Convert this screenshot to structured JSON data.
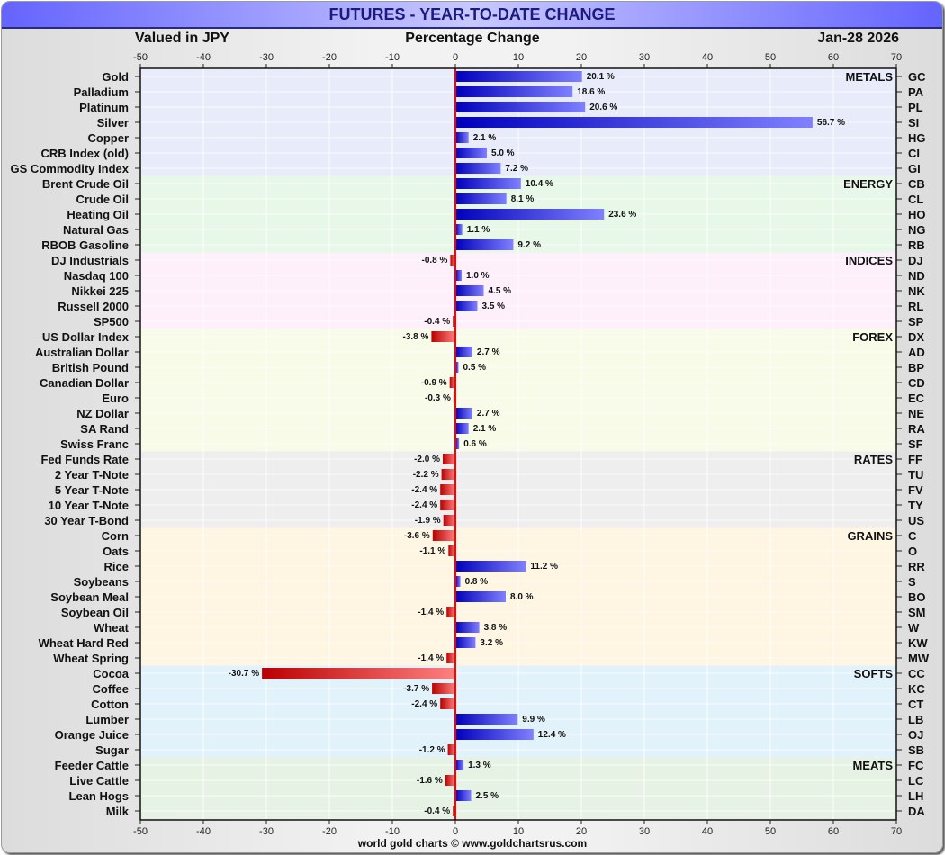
{
  "header": {
    "title": "FUTURES - YEAR-TO-DATE CHANGE",
    "left_note": "Valued in JPY",
    "center_note": "Percentage Change",
    "date": "Jan-28  2026"
  },
  "footer": "world gold charts © www.goldchartsrus.com",
  "colors": {
    "positive_dark": "#0000bb",
    "positive_light": "#8080ff",
    "negative_dark": "#bb0000",
    "negative_light": "#ff8080",
    "zero_line": "#ff0000"
  },
  "chart_data": {
    "type": "bar",
    "orientation": "horizontal",
    "title": "FUTURES - YEAR-TO-DATE CHANGE",
    "xlabel": "Percentage Change",
    "xlim": [
      -50,
      70
    ],
    "xticks": [
      -50,
      -40,
      -30,
      -20,
      -10,
      0,
      10,
      20,
      30,
      40,
      50,
      60,
      70
    ],
    "grid": true,
    "value_suffix": " %",
    "sections": [
      {
        "name": "METALS",
        "color": "#e8ecfa",
        "items": [
          {
            "label": "Gold",
            "code": "GC",
            "value": 20.1
          },
          {
            "label": "Palladium",
            "code": "PA",
            "value": 18.6
          },
          {
            "label": "Platinum",
            "code": "PL",
            "value": 20.6
          },
          {
            "label": "Silver",
            "code": "SI",
            "value": 56.7
          },
          {
            "label": "Copper",
            "code": "HG",
            "value": 2.1
          },
          {
            "label": "CRB Index (old)",
            "code": "CI",
            "value": 5.0
          },
          {
            "label": "GS Commodity Index",
            "code": "GI",
            "value": 7.2
          }
        ]
      },
      {
        "name": "ENERGY",
        "color": "#e8f8e8",
        "items": [
          {
            "label": "Brent Crude Oil",
            "code": "CB",
            "value": 10.4
          },
          {
            "label": "Crude Oil",
            "code": "CL",
            "value": 8.1
          },
          {
            "label": "Heating Oil",
            "code": "HO",
            "value": 23.6
          },
          {
            "label": "Natural Gas",
            "code": "NG",
            "value": 1.1
          },
          {
            "label": "RBOB Gasoline",
            "code": "RB",
            "value": 9.2
          }
        ]
      },
      {
        "name": "INDICES",
        "color": "#fdf0fa",
        "items": [
          {
            "label": "DJ Industrials",
            "code": "DJ",
            "value": -0.8
          },
          {
            "label": "Nasdaq 100",
            "code": "ND",
            "value": 1.0
          },
          {
            "label": "Nikkei 225",
            "code": "NK",
            "value": 4.5
          },
          {
            "label": "Russell 2000",
            "code": "RL",
            "value": 3.5
          },
          {
            "label": "SP500",
            "code": "SP",
            "value": -0.4
          }
        ]
      },
      {
        "name": "FOREX",
        "color": "#f8fbe8",
        "items": [
          {
            "label": "US Dollar Index",
            "code": "DX",
            "value": -3.8
          },
          {
            "label": "Australian Dollar",
            "code": "AD",
            "value": 2.7
          },
          {
            "label": "British Pound",
            "code": "BP",
            "value": 0.5
          },
          {
            "label": "Canadian Dollar",
            "code": "CD",
            "value": -0.9
          },
          {
            "label": "Euro",
            "code": "EC",
            "value": -0.3
          },
          {
            "label": "NZ Dollar",
            "code": "NE",
            "value": 2.7
          },
          {
            "label": "SA Rand",
            "code": "RA",
            "value": 2.1
          },
          {
            "label": "Swiss Franc",
            "code": "SF",
            "value": 0.6
          }
        ]
      },
      {
        "name": "RATES",
        "color": "#eeeeee",
        "items": [
          {
            "label": "Fed Funds Rate",
            "code": "FF",
            "value": -2.0
          },
          {
            "label": "2 Year T-Note",
            "code": "TU",
            "value": -2.2
          },
          {
            "label": "5 Year T-Note",
            "code": "FV",
            "value": -2.4
          },
          {
            "label": "10 Year T-Note",
            "code": "TY",
            "value": -2.4
          },
          {
            "label": "30 Year T-Bond",
            "code": "US",
            "value": -1.9
          }
        ]
      },
      {
        "name": "GRAINS",
        "color": "#fef6e2",
        "items": [
          {
            "label": "Corn",
            "code": "C",
            "value": -3.6
          },
          {
            "label": "Oats",
            "code": "O",
            "value": -1.1
          },
          {
            "label": "Rice",
            "code": "RR",
            "value": 11.2
          },
          {
            "label": "Soybeans",
            "code": "S",
            "value": 0.8
          },
          {
            "label": "Soybean Meal",
            "code": "BO",
            "value": 8.0
          },
          {
            "label": "Soybean Oil",
            "code": "SM",
            "value": -1.4
          },
          {
            "label": "Wheat",
            "code": "W",
            "value": 3.8
          },
          {
            "label": "Wheat Hard Red",
            "code": "KW",
            "value": 3.2
          },
          {
            "label": "Wheat Spring",
            "code": "MW",
            "value": -1.4
          }
        ]
      },
      {
        "name": "SOFTS",
        "color": "#e2f2fa",
        "items": [
          {
            "label": "Cocoa",
            "code": "CC",
            "value": -30.7
          },
          {
            "label": "Coffee",
            "code": "KC",
            "value": -3.7
          },
          {
            "label": "Cotton",
            "code": "CT",
            "value": -2.4
          },
          {
            "label": "Lumber",
            "code": "LB",
            "value": 9.9
          },
          {
            "label": "Orange Juice",
            "code": "OJ",
            "value": 12.4
          },
          {
            "label": "Sugar",
            "code": "SB",
            "value": -1.2
          }
        ]
      },
      {
        "name": "MEATS",
        "color": "#e6f3e4",
        "items": [
          {
            "label": "Feeder Cattle",
            "code": "FC",
            "value": 1.3
          },
          {
            "label": "Live Cattle",
            "code": "LC",
            "value": -1.6
          },
          {
            "label": "Lean Hogs",
            "code": "LH",
            "value": 2.5
          },
          {
            "label": "Milk",
            "code": "DA",
            "value": -0.4
          }
        ]
      }
    ]
  }
}
